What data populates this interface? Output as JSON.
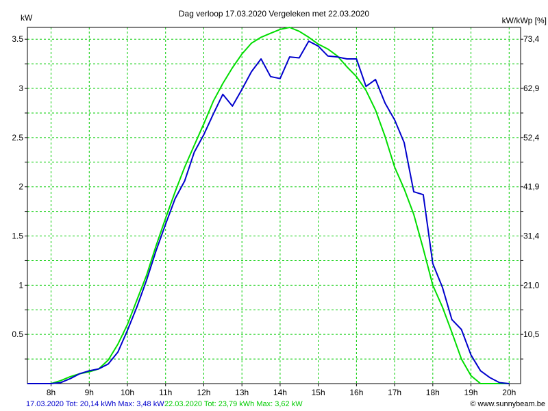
{
  "chart_data": {
    "type": "line",
    "title": "Dag  verloop 17.03.2020   Vergeleken met 22.03.2020",
    "ylabel_left": "kW",
    "ylabel_right": "kW/kWp [%]",
    "x_tick_labels": [
      "8h",
      "9h",
      "10h",
      "11h",
      "12h",
      "13h",
      "14h",
      "15h",
      "16h",
      "17h",
      "18h",
      "19h",
      "20h"
    ],
    "y_tick_labels_left": [
      "0.5",
      "1",
      "1.5",
      "2",
      "2.5",
      "3",
      "3.5"
    ],
    "y_tick_labels_right": [
      "10,5",
      "21,0",
      "31,4",
      "41,9",
      "52,4",
      "62,9",
      "73,4"
    ],
    "xlim": [
      7.38,
      20.3
    ],
    "ylim": [
      0,
      3.62
    ],
    "grid": true,
    "grid_color": "#00cc00",
    "series": [
      {
        "name": "17.03.2020",
        "color": "#0000cc",
        "x": [
          8.0,
          8.25,
          8.5,
          8.75,
          9.0,
          9.25,
          9.5,
          9.75,
          10.0,
          10.25,
          10.5,
          10.75,
          11.0,
          11.25,
          11.5,
          11.75,
          12.0,
          12.25,
          12.5,
          12.75,
          13.0,
          13.25,
          13.5,
          13.75,
          14.0,
          14.25,
          14.5,
          14.75,
          15.0,
          15.25,
          15.5,
          15.75,
          16.0,
          16.25,
          16.5,
          16.75,
          17.0,
          17.25,
          17.5,
          17.75,
          18.0,
          18.25,
          18.5,
          18.75,
          19.0,
          19.25,
          19.5,
          19.75
        ],
        "y": [
          0.0,
          0.01,
          0.05,
          0.1,
          0.13,
          0.15,
          0.2,
          0.32,
          0.54,
          0.78,
          1.05,
          1.35,
          1.62,
          1.88,
          2.06,
          2.35,
          2.53,
          2.74,
          2.94,
          2.82,
          2.99,
          3.17,
          3.3,
          3.12,
          3.1,
          3.32,
          3.31,
          3.48,
          3.43,
          3.33,
          3.32,
          3.3,
          3.3,
          3.02,
          3.09,
          2.85,
          2.68,
          2.45,
          1.95,
          1.92,
          1.22,
          0.98,
          0.65,
          0.55,
          0.29,
          0.13,
          0.06,
          0.01
        ]
      },
      {
        "name": "22.03.2020",
        "color": "#00dd00",
        "x": [
          8.0,
          8.25,
          8.5,
          8.75,
          9.0,
          9.25,
          9.5,
          9.75,
          10.0,
          10.25,
          10.5,
          10.75,
          11.0,
          11.25,
          11.5,
          11.75,
          12.0,
          12.25,
          12.5,
          12.75,
          13.0,
          13.25,
          13.5,
          13.75,
          14.0,
          14.25,
          14.5,
          14.75,
          15.0,
          15.25,
          15.5,
          15.75,
          16.0,
          16.25,
          16.5,
          16.75,
          17.0,
          17.25,
          17.5,
          17.75,
          18.0,
          18.25,
          18.5,
          18.75,
          19.0,
          19.25,
          19.5,
          19.75
        ],
        "y": [
          0.0,
          0.03,
          0.07,
          0.1,
          0.12,
          0.15,
          0.24,
          0.4,
          0.6,
          0.85,
          1.1,
          1.4,
          1.68,
          1.95,
          2.2,
          2.42,
          2.64,
          2.87,
          3.05,
          3.21,
          3.35,
          3.46,
          3.52,
          3.56,
          3.6,
          3.62,
          3.58,
          3.52,
          3.45,
          3.4,
          3.33,
          3.22,
          3.12,
          2.98,
          2.78,
          2.51,
          2.2,
          1.98,
          1.72,
          1.37,
          1.0,
          0.78,
          0.52,
          0.25,
          0.08,
          0.0,
          0.0,
          0.0
        ]
      }
    ]
  },
  "footer": {
    "series1_text": "17.03.2020 Tot: 20,14 kWh Max: 3,48 kW",
    "series1_color": "#0000cc",
    "series2_text": "22.03.2020 Tot: 23,79 kWh Max: 3,62 kW",
    "series2_color": "#00cc00",
    "credit": "© www.sunnybeam.be"
  }
}
